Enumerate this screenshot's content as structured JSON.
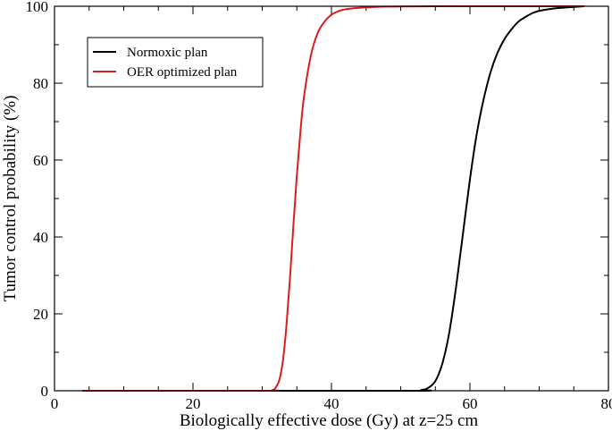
{
  "chart_data": {
    "type": "line",
    "xlabel": "Biologically  effective dose (Gy) at z=25 cm",
    "ylabel": "Tumor control probability (%)",
    "xlim": [
      0,
      80
    ],
    "ylim": [
      0,
      100
    ],
    "xticks": [
      0,
      20,
      40,
      60,
      80
    ],
    "yticks": [
      0,
      20,
      40,
      60,
      80,
      100
    ],
    "x_minor_step": 5,
    "y_minor_step": 10,
    "legend_position": "top-left",
    "series": [
      {
        "name": "Normoxic plan",
        "color": "#000000",
        "x": [
          4,
          50,
          53,
          54,
          55,
          56,
          57,
          58,
          59,
          60,
          61,
          62,
          63,
          64,
          65,
          66,
          67,
          68,
          69,
          70,
          72,
          74,
          76.5
        ],
        "y": [
          0,
          0,
          0.2,
          0.8,
          2.5,
          7,
          15,
          27,
          41,
          55,
          67,
          76,
          83,
          88,
          91.5,
          94,
          96,
          97.2,
          98.2,
          98.8,
          99.4,
          99.7,
          100
        ]
      },
      {
        "name": "OER optimized plan",
        "color": "#dd1c1c",
        "x": [
          4,
          30,
          31.5,
          32,
          32.5,
          33,
          33.5,
          34,
          34.5,
          35,
          35.5,
          36,
          37,
          38,
          39,
          40,
          41,
          42,
          44,
          46,
          48,
          55,
          76.5
        ],
        "y": [
          0,
          0,
          0.2,
          1,
          3,
          8,
          17,
          29,
          43,
          56,
          67,
          76,
          87,
          93,
          96,
          97.8,
          98.7,
          99.2,
          99.6,
          99.8,
          99.9,
          100,
          100
        ]
      }
    ]
  }
}
